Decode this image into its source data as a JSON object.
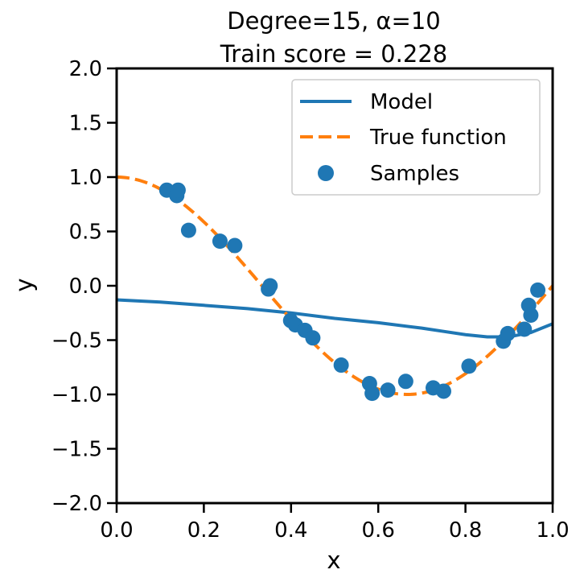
{
  "chart_data": {
    "type": "line",
    "title_line1": "Degree=15, α=10",
    "title_line2": "Train score = 0.228",
    "xlabel": "x",
    "ylabel": "y",
    "xlim": [
      0.0,
      1.0
    ],
    "ylim": [
      -2.0,
      2.0
    ],
    "xticks": [
      "0.0",
      "0.2",
      "0.4",
      "0.6",
      "0.8",
      "1.0"
    ],
    "yticks": [
      "2.0",
      "1.5",
      "1.0",
      "0.5",
      "0.0",
      "−0.5",
      "−1.0",
      "−1.5",
      "−2.0"
    ],
    "grid": false,
    "legend_position": "top-right",
    "series": [
      {
        "name": "Model",
        "kind": "line",
        "color": "#1f77b4",
        "x": [
          0.0,
          0.1,
          0.2,
          0.3,
          0.4,
          0.5,
          0.6,
          0.7,
          0.75,
          0.8,
          0.85,
          0.9,
          0.95,
          1.0
        ],
        "y": [
          -0.13,
          -0.15,
          -0.18,
          -0.21,
          -0.25,
          -0.3,
          -0.34,
          -0.39,
          -0.42,
          -0.45,
          -0.47,
          -0.47,
          -0.43,
          -0.35
        ]
      },
      {
        "name": "True function",
        "kind": "dashed",
        "color": "#ff7f0e",
        "function": "cos(1.5*pi*x)"
      },
      {
        "name": "Samples",
        "kind": "scatter",
        "color": "#1f77b4",
        "x": [
          0.115,
          0.138,
          0.141,
          0.165,
          0.237,
          0.271,
          0.348,
          0.352,
          0.399,
          0.41,
          0.432,
          0.45,
          0.515,
          0.58,
          0.586,
          0.622,
          0.663,
          0.726,
          0.75,
          0.808,
          0.887,
          0.897,
          0.935,
          0.945,
          0.95,
          0.966
        ],
        "y": [
          0.88,
          0.83,
          0.88,
          0.51,
          0.41,
          0.37,
          -0.03,
          0.0,
          -0.32,
          -0.36,
          -0.41,
          -0.48,
          -0.73,
          -0.9,
          -0.99,
          -0.96,
          -0.88,
          -0.94,
          -0.97,
          -0.74,
          -0.51,
          -0.44,
          -0.4,
          -0.18,
          -0.27,
          -0.04
        ]
      }
    ]
  }
}
